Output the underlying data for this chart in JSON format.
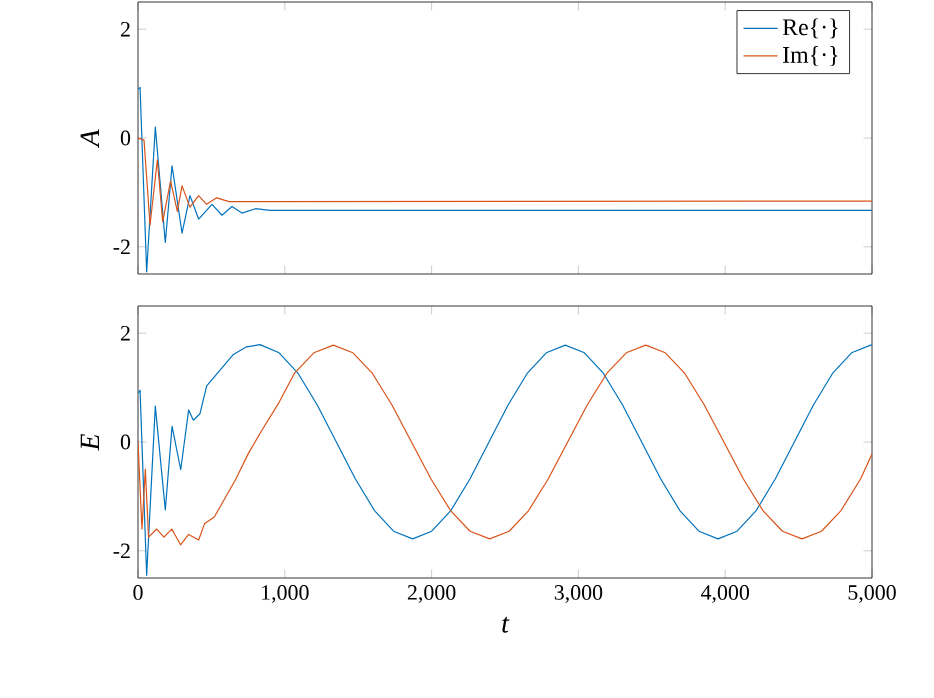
{
  "chart_data": [
    {
      "type": "line",
      "ylabel": "A",
      "legend": "top right",
      "marker": "none",
      "line_style": "solid",
      "tick_labels": "y",
      "xlim": [
        0,
        5000
      ],
      "ylim": [
        -2.5,
        2.5
      ],
      "xticks": [
        {
          "value": 0,
          "label": null
        },
        {
          "value": 1000,
          "label": null
        },
        {
          "value": 2000,
          "label": null
        },
        {
          "value": 3000,
          "label": null
        },
        {
          "value": 4000,
          "label": null
        },
        {
          "value": 5000,
          "label": null
        }
      ],
      "yticks": [
        -2,
        0,
        2
      ],
      "series": [
        {
          "name": "Re{·}",
          "color": "#0072bd",
          "x": [
            0,
            14,
            59,
            118,
            186,
            232,
            300,
            354,
            413,
            504,
            572,
            640,
            708,
            800,
            900,
            5000
          ],
          "values": [
            0.9,
            0.93,
            -2.46,
            0.2,
            -1.92,
            -0.51,
            -1.75,
            -1.06,
            -1.49,
            -1.22,
            -1.42,
            -1.26,
            -1.38,
            -1.3,
            -1.33,
            -1.33
          ]
        },
        {
          "name": "Im{·}",
          "color": "#d95319",
          "x": [
            0,
            41,
            82,
            132,
            168,
            222,
            268,
            300,
            354,
            413,
            467,
            536,
            620,
            5000
          ],
          "values": [
            0,
            -0.04,
            -1.6,
            -0.4,
            -1.54,
            -0.79,
            -1.35,
            -0.88,
            -1.27,
            -1.06,
            -1.22,
            -1.1,
            -1.17,
            -1.16
          ]
        }
      ]
    },
    {
      "type": "line",
      "xlabel": "t",
      "ylabel": "E",
      "marker": "none",
      "line_style": "solid",
      "xlim": [
        0,
        5000
      ],
      "ylim": [
        -2.5,
        2.5
      ],
      "xticks": [
        0,
        {
          "value": 1000,
          "label": "1,000"
        },
        {
          "value": 2000,
          "label": "2,000"
        },
        {
          "value": 3000,
          "label": "3,000"
        },
        {
          "value": 4000,
          "label": "4,000"
        },
        {
          "value": 5000,
          "label": "5,000"
        }
      ],
      "yticks": [
        -2,
        0,
        2
      ],
      "series": [
        {
          "color": "#0072bd",
          "x": [
            0,
            14,
            59,
            118,
            186,
            232,
            291,
            345,
            377,
            422,
            468,
            559,
            650,
            740,
            831,
            961,
            1091,
            1221,
            1351,
            1481,
            1611,
            1741,
            1871,
            2001,
            2131,
            2261,
            2391,
            2521,
            2651,
            2781,
            2911,
            3041,
            3171,
            3301,
            3431,
            3561,
            3691,
            3821,
            3951,
            4081,
            4211,
            4341,
            4471,
            4601,
            4731,
            4861,
            4991,
            5000
          ],
          "values": [
            0.9,
            0.95,
            -2.45,
            0.66,
            -1.25,
            0.29,
            -0.51,
            0.59,
            0.4,
            0.52,
            1.03,
            1.32,
            1.61,
            1.75,
            1.79,
            1.64,
            1.26,
            0.68,
            0,
            -0.68,
            -1.26,
            -1.64,
            -1.78,
            -1.64,
            -1.26,
            -0.68,
            0,
            0.68,
            1.26,
            1.64,
            1.78,
            1.64,
            1.26,
            0.68,
            0,
            -0.68,
            -1.26,
            -1.64,
            -1.78,
            -1.64,
            -1.26,
            -0.68,
            0,
            0.68,
            1.26,
            1.64,
            1.78,
            1.78
          ]
        },
        {
          "color": "#d95319",
          "x": [
            0,
            27,
            50,
            72,
            127,
            177,
            230,
            290,
            345,
            413,
            454,
            520,
            572,
            663,
            754,
            845,
            955,
            1065,
            1198,
            1331,
            1464,
            1597,
            1730,
            1863,
            1996,
            2129,
            2262,
            2395,
            2528,
            2661,
            2794,
            2927,
            3060,
            3193,
            3326,
            3459,
            3592,
            3725,
            3858,
            3991,
            4124,
            4257,
            4390,
            4523,
            4656,
            4789,
            4922,
            5000
          ],
          "values": [
            0,
            -1.6,
            -0.5,
            -1.75,
            -1.6,
            -1.75,
            -1.6,
            -1.89,
            -1.7,
            -1.8,
            -1.5,
            -1.38,
            -1.13,
            -0.7,
            -0.2,
            0.22,
            0.7,
            1.26,
            1.64,
            1.78,
            1.64,
            1.26,
            0.68,
            0,
            -0.68,
            -1.26,
            -1.64,
            -1.78,
            -1.64,
            -1.26,
            -0.68,
            0,
            0.68,
            1.26,
            1.64,
            1.78,
            1.64,
            1.26,
            0.68,
            0,
            -0.68,
            -1.26,
            -1.64,
            -1.78,
            -1.64,
            -1.26,
            -0.68,
            -0.22
          ]
        }
      ]
    }
  ]
}
